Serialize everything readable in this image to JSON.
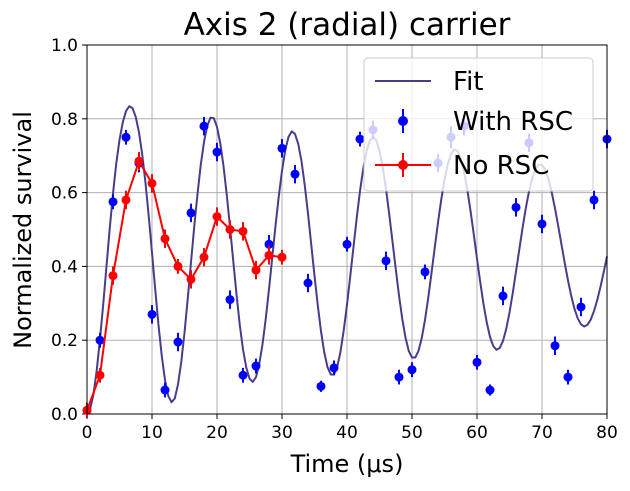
{
  "chart_data": {
    "type": "scatter",
    "title": "Axis 2 (radial) carrier",
    "xlabel": "Time (μs)",
    "ylabel": "Normalized survival",
    "xlim": [
      0,
      80
    ],
    "ylim": [
      0,
      1.0
    ],
    "xticks": [
      0,
      10,
      20,
      30,
      40,
      50,
      60,
      70,
      80
    ],
    "yticks": [
      0.0,
      0.2,
      0.4,
      0.6,
      0.8,
      1.0
    ],
    "xtick_labels": [
      "0",
      "10",
      "20",
      "30",
      "40",
      "50",
      "60",
      "70",
      "80"
    ],
    "ytick_labels": [
      "0.0",
      "0.2",
      "0.4",
      "0.6",
      "0.8",
      "1.0"
    ],
    "grid": true,
    "legend_position": "top-right",
    "series": [
      {
        "name": "Fit",
        "kind": "line",
        "color": "#483d8b",
        "x": [
          0,
          0.5,
          1,
          1.5,
          2,
          2.5,
          3,
          3.5,
          4,
          4.5,
          5,
          5.5,
          6,
          6.5,
          7,
          7.5,
          8,
          8.5,
          9,
          9.5,
          10,
          10.5,
          11,
          11.5,
          12,
          12.5,
          13,
          13.5,
          14,
          14.5,
          15,
          15.5,
          16,
          16.5,
          17,
          17.5,
          18,
          18.5,
          19,
          19.5,
          20,
          20.5,
          21,
          21.5,
          22,
          22.5,
          23,
          23.5,
          24,
          24.5,
          25,
          25.5,
          26,
          26.5,
          27,
          27.5,
          28,
          28.5,
          29,
          29.5,
          30,
          30.5,
          31,
          31.5,
          32,
          32.5,
          33,
          33.5,
          34,
          34.5,
          35,
          35.5,
          36,
          36.5,
          37,
          37.5,
          38,
          38.5,
          39,
          39.5,
          40,
          40.5,
          41,
          41.5,
          42,
          42.5,
          43,
          43.5,
          44,
          44.5,
          45,
          45.5,
          46,
          46.5,
          47,
          47.5,
          48,
          48.5,
          49,
          49.5,
          50,
          50.5,
          51,
          51.5,
          52,
          52.5,
          53,
          53.5,
          54,
          54.5,
          55,
          55.5,
          56,
          56.5,
          57,
          57.5,
          58,
          58.5,
          59,
          59.5,
          60,
          60.5,
          61,
          61.5,
          62,
          62.5,
          63,
          63.5,
          64,
          64.5,
          65,
          65.5,
          66,
          66.5,
          67,
          67.5,
          68,
          68.5,
          69,
          69.5,
          70,
          70.5,
          71,
          71.5,
          72,
          72.5,
          73,
          73.5,
          74,
          74.5,
          75,
          75.5,
          76,
          76.5,
          77,
          77.5,
          78,
          78.5,
          79,
          79.5,
          80
        ],
        "y": [
          0.0,
          0.014,
          0.054,
          0.119,
          0.203,
          0.298,
          0.401,
          0.503,
          0.597,
          0.679,
          0.743,
          0.79,
          0.821,
          0.834,
          0.829,
          0.805,
          0.763,
          0.703,
          0.626,
          0.536,
          0.437,
          0.337,
          0.241,
          0.158,
          0.092,
          0.049,
          0.032,
          0.042,
          0.08,
          0.141,
          0.22,
          0.313,
          0.411,
          0.508,
          0.596,
          0.675,
          0.737,
          0.781,
          0.803,
          0.802,
          0.778,
          0.734,
          0.672,
          0.594,
          0.507,
          0.415,
          0.324,
          0.242,
          0.175,
          0.126,
          0.096,
          0.087,
          0.1,
          0.135,
          0.189,
          0.258,
          0.338,
          0.424,
          0.51,
          0.589,
          0.659,
          0.715,
          0.751,
          0.766,
          0.759,
          0.732,
          0.685,
          0.62,
          0.543,
          0.459,
          0.375,
          0.295,
          0.224,
          0.167,
          0.127,
          0.107,
          0.107,
          0.128,
          0.169,
          0.227,
          0.296,
          0.373,
          0.453,
          0.532,
          0.604,
          0.665,
          0.711,
          0.74,
          0.751,
          0.742,
          0.713,
          0.668,
          0.61,
          0.541,
          0.467,
          0.393,
          0.321,
          0.258,
          0.207,
          0.171,
          0.153,
          0.153,
          0.171,
          0.206,
          0.255,
          0.315,
          0.382,
          0.451,
          0.519,
          0.581,
          0.635,
          0.677,
          0.705,
          0.717,
          0.713,
          0.692,
          0.657,
          0.609,
          0.551,
          0.487,
          0.421,
          0.357,
          0.298,
          0.248,
          0.209,
          0.184,
          0.174,
          0.179,
          0.198,
          0.231,
          0.275,
          0.328,
          0.386,
          0.445,
          0.503,
          0.557,
          0.603,
          0.639,
          0.664,
          0.676,
          0.675,
          0.662,
          0.636,
          0.6,
          0.557,
          0.509,
          0.459,
          0.409,
          0.362,
          0.32,
          0.285,
          0.259,
          0.243,
          0.237,
          0.242,
          0.256,
          0.279,
          0.309,
          0.345,
          0.385,
          0.427
        ]
      },
      {
        "name": "With RSC",
        "kind": "errorbar",
        "color": "#0000ff",
        "x": [
          0,
          2,
          4,
          6,
          8,
          10,
          12,
          14,
          16,
          18,
          20,
          22,
          24,
          26,
          28,
          30,
          32,
          34,
          36,
          38,
          40,
          42,
          44,
          46,
          48,
          50,
          52,
          54,
          56,
          58,
          60,
          62,
          64,
          66,
          68,
          70,
          72,
          74,
          76,
          78,
          80
        ],
        "y": [
          0.01,
          0.2,
          0.575,
          0.75,
          0.68,
          0.27,
          0.065,
          0.195,
          0.545,
          0.78,
          0.71,
          0.31,
          0.105,
          0.13,
          0.46,
          0.72,
          0.65,
          0.355,
          0.075,
          0.125,
          0.46,
          0.745,
          0.77,
          0.415,
          0.1,
          0.12,
          0.385,
          0.68,
          0.75,
          0.78,
          0.14,
          0.065,
          0.32,
          0.56,
          0.735,
          0.515,
          0.185,
          0.1,
          0.29,
          0.58,
          0.745
        ],
        "yerr": [
          0.02,
          0.02,
          0.02,
          0.02,
          0.025,
          0.025,
          0.02,
          0.025,
          0.025,
          0.025,
          0.025,
          0.025,
          0.02,
          0.02,
          0.025,
          0.025,
          0.025,
          0.025,
          0.015,
          0.02,
          0.02,
          0.02,
          0.025,
          0.025,
          0.02,
          0.02,
          0.02,
          0.025,
          0.03,
          0.025,
          0.02,
          0.015,
          0.025,
          0.025,
          0.025,
          0.025,
          0.025,
          0.02,
          0.025,
          0.025,
          0.025
        ]
      },
      {
        "name": "No RSC",
        "kind": "errorbar-line",
        "color": "#ff0000",
        "x": [
          0,
          2,
          4,
          6,
          8,
          10,
          12,
          14,
          16,
          18,
          20,
          22,
          24,
          26,
          28,
          30
        ],
        "y": [
          0.01,
          0.105,
          0.375,
          0.58,
          0.685,
          0.625,
          0.475,
          0.4,
          0.365,
          0.425,
          0.535,
          0.5,
          0.495,
          0.39,
          0.43,
          0.425
        ],
        "yerr": [
          0.02,
          0.02,
          0.025,
          0.025,
          0.025,
          0.025,
          0.025,
          0.02,
          0.025,
          0.025,
          0.025,
          0.025,
          0.025,
          0.025,
          0.025,
          0.02
        ]
      }
    ]
  }
}
